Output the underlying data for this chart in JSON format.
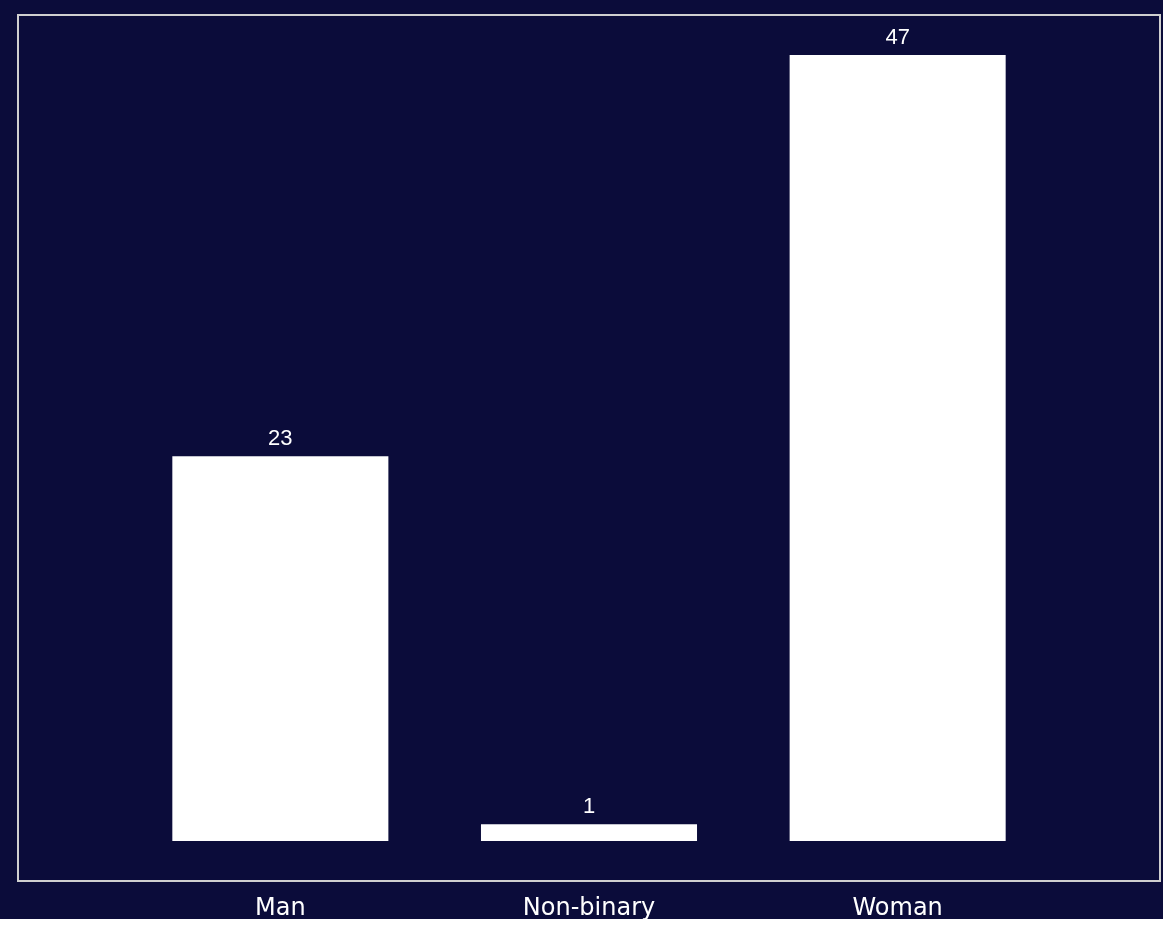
{
  "chart_data": {
    "type": "bar",
    "categories": [
      "Man",
      "Non-binary",
      "Woman"
    ],
    "values": [
      23,
      1,
      47
    ],
    "color": "#ffffff",
    "ylim": [
      -2.4,
      49.4
    ],
    "data_labels": true,
    "grid": false,
    "tick_labels": "x"
  }
}
